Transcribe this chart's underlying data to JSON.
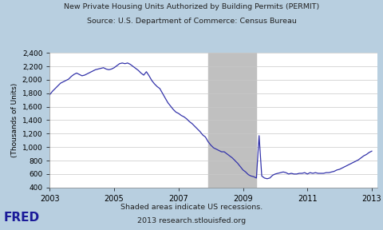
{
  "title_line1": "New Private Housing Units Authorized by Building Permits (PERMIT)",
  "title_line2": "Source: U.S. Department of Commerce: Census Bureau",
  "ylabel": "(Thousands of Units)",
  "xlabel_ticks": [
    2003,
    2005,
    2007,
    2009,
    2011,
    2013
  ],
  "ylim": [
    400,
    2400
  ],
  "yticks": [
    400,
    600,
    800,
    1000,
    1200,
    1400,
    1600,
    1800,
    2000,
    2200,
    2400
  ],
  "ytick_labels": [
    "400",
    "600",
    "800",
    "1,000",
    "1,200",
    "1,400",
    "1,600",
    "1,800",
    "2,000",
    "2,200",
    "2,400"
  ],
  "xlim_start": 2003.0,
  "xlim_end": 2013.17,
  "recession_start": 2007.917,
  "recession_end": 2009.417,
  "line_color": "#3333aa",
  "recession_color": "#c0c0c0",
  "background_color": "#b8cfe0",
  "plot_bg_color": "#ffffff",
  "fred_text": "FRED",
  "footer_line1": "Shaded areas indicate US recessions.",
  "footer_line2": "2013 research.stlouisfed.org",
  "data": {
    "dates": [
      2003.0,
      2003.083,
      2003.167,
      2003.25,
      2003.333,
      2003.417,
      2003.5,
      2003.583,
      2003.667,
      2003.75,
      2003.833,
      2003.917,
      2004.0,
      2004.083,
      2004.167,
      2004.25,
      2004.333,
      2004.417,
      2004.5,
      2004.583,
      2004.667,
      2004.75,
      2004.833,
      2004.917,
      2005.0,
      2005.083,
      2005.167,
      2005.25,
      2005.333,
      2005.417,
      2005.5,
      2005.583,
      2005.667,
      2005.75,
      2005.833,
      2005.917,
      2006.0,
      2006.083,
      2006.167,
      2006.25,
      2006.333,
      2006.417,
      2006.5,
      2006.583,
      2006.667,
      2006.75,
      2006.833,
      2006.917,
      2007.0,
      2007.083,
      2007.167,
      2007.25,
      2007.333,
      2007.417,
      2007.5,
      2007.583,
      2007.667,
      2007.75,
      2007.833,
      2007.917,
      2008.0,
      2008.083,
      2008.167,
      2008.25,
      2008.333,
      2008.417,
      2008.5,
      2008.583,
      2008.667,
      2008.75,
      2008.833,
      2008.917,
      2009.0,
      2009.083,
      2009.167,
      2009.25,
      2009.333,
      2009.417,
      2009.5,
      2009.583,
      2009.667,
      2009.75,
      2009.833,
      2009.917,
      2010.0,
      2010.083,
      2010.167,
      2010.25,
      2010.333,
      2010.417,
      2010.5,
      2010.583,
      2010.667,
      2010.75,
      2010.833,
      2010.917,
      2011.0,
      2011.083,
      2011.167,
      2011.25,
      2011.333,
      2011.417,
      2011.5,
      2011.583,
      2011.667,
      2011.75,
      2011.833,
      2011.917,
      2012.0,
      2012.083,
      2012.167,
      2012.25,
      2012.333,
      2012.417,
      2012.5,
      2012.583,
      2012.667,
      2012.75,
      2012.833,
      2012.917,
      2013.0
    ],
    "values": [
      1780,
      1830,
      1870,
      1910,
      1950,
      1970,
      1990,
      2010,
      2050,
      2080,
      2100,
      2080,
      2060,
      2070,
      2090,
      2110,
      2130,
      2150,
      2160,
      2170,
      2180,
      2160,
      2150,
      2160,
      2180,
      2210,
      2240,
      2250,
      2240,
      2250,
      2230,
      2200,
      2170,
      2140,
      2100,
      2070,
      2120,
      2060,
      1990,
      1940,
      1900,
      1870,
      1800,
      1730,
      1660,
      1610,
      1560,
      1520,
      1500,
      1470,
      1450,
      1420,
      1380,
      1350,
      1310,
      1270,
      1230,
      1180,
      1150,
      1080,
      1030,
      990,
      970,
      950,
      930,
      930,
      900,
      870,
      840,
      800,
      760,
      710,
      660,
      630,
      590,
      570,
      560,
      540,
      1170,
      570,
      540,
      530,
      540,
      580,
      600,
      610,
      620,
      630,
      620,
      600,
      610,
      600,
      600,
      610,
      610,
      620,
      600,
      620,
      610,
      620,
      610,
      610,
      610,
      620,
      620,
      630,
      640,
      660,
      670,
      690,
      710,
      730,
      750,
      770,
      790,
      810,
      840,
      870,
      890,
      920,
      940
    ]
  }
}
